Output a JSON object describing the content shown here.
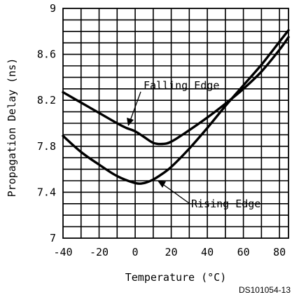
{
  "chart_data": {
    "type": "line",
    "xlabel": "Temperature (°C)",
    "ylabel": "Propagation Delay (ns)",
    "xlim": [
      -40,
      85
    ],
    "ylim": [
      7.0,
      9.0
    ],
    "x_ticks": [
      "-40",
      "-20",
      "0",
      "20",
      "40",
      "60",
      "80"
    ],
    "y_ticks": [
      "7",
      "7.4",
      "7.8",
      "8.2",
      "8.6",
      "9"
    ],
    "grid": true,
    "series": [
      {
        "name": "Falling Edge",
        "x": [
          -40,
          -30,
          -20,
          -10,
          -5,
          0,
          5,
          10,
          15,
          20,
          30,
          40,
          50,
          60,
          70,
          80,
          85
        ],
        "y": [
          8.27,
          8.18,
          8.09,
          8.0,
          7.96,
          7.93,
          7.88,
          7.83,
          7.82,
          7.84,
          7.94,
          8.05,
          8.17,
          8.3,
          8.45,
          8.64,
          8.75
        ]
      },
      {
        "name": "Rising Edge",
        "x": [
          -40,
          -30,
          -20,
          -10,
          0,
          5,
          10,
          15,
          20,
          30,
          40,
          50,
          60,
          70,
          80,
          85
        ],
        "y": [
          7.89,
          7.75,
          7.64,
          7.54,
          7.48,
          7.48,
          7.51,
          7.56,
          7.62,
          7.78,
          7.96,
          8.15,
          8.33,
          8.51,
          8.71,
          8.81
        ]
      }
    ],
    "annotations": [
      "Falling Edge",
      "Rising Edge"
    ]
  },
  "figure_code": "DS101054-13"
}
